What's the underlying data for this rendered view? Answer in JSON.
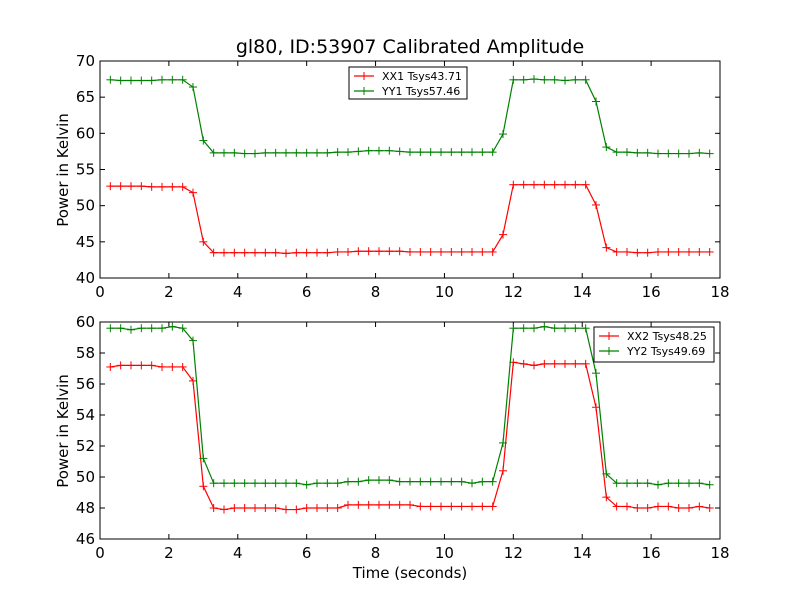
{
  "chart_data": [
    {
      "type": "line",
      "title": "gl80, ID:53907 Calibrated Amplitude",
      "xlabel": "",
      "ylabel": "Power in Kelvin",
      "xlim": [
        0,
        18
      ],
      "ylim": [
        40,
        70
      ],
      "xticks": [
        "0",
        "2",
        "4",
        "6",
        "8",
        "10",
        "12",
        "14",
        "16",
        "18"
      ],
      "yticks": [
        "40",
        "45",
        "50",
        "55",
        "60",
        "65",
        "70"
      ],
      "legend_position": "top-center",
      "x": [
        0.3,
        0.6,
        0.9,
        1.2,
        1.5,
        1.8,
        2.1,
        2.4,
        2.7,
        3.0,
        3.3,
        3.6,
        3.9,
        4.2,
        4.5,
        4.8,
        5.1,
        5.4,
        5.7,
        6.0,
        6.3,
        6.6,
        6.9,
        7.2,
        7.5,
        7.8,
        8.1,
        8.4,
        8.7,
        9.0,
        9.3,
        9.6,
        9.9,
        10.2,
        10.5,
        10.8,
        11.1,
        11.4,
        11.7,
        12.0,
        12.3,
        12.6,
        12.9,
        13.2,
        13.5,
        13.8,
        14.1,
        14.4,
        14.7,
        15.0,
        15.3,
        15.6,
        15.9,
        16.2,
        16.5,
        16.8,
        17.1,
        17.4,
        17.7
      ],
      "series": [
        {
          "name": "XX1 Tsys43.71",
          "color": "#ff0000",
          "values": [
            52.7,
            52.7,
            52.7,
            52.7,
            52.6,
            52.6,
            52.6,
            52.6,
            51.8,
            45.0,
            43.5,
            43.5,
            43.5,
            43.5,
            43.5,
            43.5,
            43.5,
            43.4,
            43.5,
            43.5,
            43.5,
            43.5,
            43.6,
            43.6,
            43.7,
            43.7,
            43.7,
            43.7,
            43.7,
            43.6,
            43.6,
            43.6,
            43.6,
            43.6,
            43.6,
            43.6,
            43.6,
            43.6,
            46.0,
            52.9,
            52.9,
            52.9,
            52.9,
            52.9,
            52.9,
            52.9,
            52.9,
            50.1,
            44.2,
            43.6,
            43.6,
            43.5,
            43.5,
            43.6,
            43.6,
            43.6,
            43.6,
            43.6,
            43.6
          ]
        },
        {
          "name": "YY1 Tsys57.46",
          "color": "#008000",
          "values": [
            67.4,
            67.3,
            67.3,
            67.3,
            67.3,
            67.4,
            67.4,
            67.4,
            66.4,
            59.0,
            57.3,
            57.3,
            57.3,
            57.2,
            57.2,
            57.3,
            57.3,
            57.3,
            57.3,
            57.3,
            57.3,
            57.3,
            57.4,
            57.4,
            57.5,
            57.6,
            57.6,
            57.6,
            57.5,
            57.4,
            57.4,
            57.4,
            57.4,
            57.4,
            57.4,
            57.4,
            57.4,
            57.4,
            59.9,
            67.4,
            67.4,
            67.5,
            67.4,
            67.4,
            67.3,
            67.4,
            67.4,
            64.4,
            58.1,
            57.4,
            57.4,
            57.3,
            57.3,
            57.2,
            57.2,
            57.2,
            57.2,
            57.3,
            57.2
          ]
        }
      ]
    },
    {
      "type": "line",
      "title": "",
      "xlabel": "Time (seconds)",
      "ylabel": "Power in Kelvin",
      "xlim": [
        0,
        18
      ],
      "ylim": [
        46,
        60
      ],
      "xticks": [
        "0",
        "2",
        "4",
        "6",
        "8",
        "10",
        "12",
        "14",
        "16",
        "18"
      ],
      "yticks": [
        "46",
        "48",
        "50",
        "52",
        "54",
        "56",
        "58",
        "60"
      ],
      "legend_position": "top-right",
      "x": [
        0.3,
        0.6,
        0.9,
        1.2,
        1.5,
        1.8,
        2.1,
        2.4,
        2.7,
        3.0,
        3.3,
        3.6,
        3.9,
        4.2,
        4.5,
        4.8,
        5.1,
        5.4,
        5.7,
        6.0,
        6.3,
        6.6,
        6.9,
        7.2,
        7.5,
        7.8,
        8.1,
        8.4,
        8.7,
        9.0,
        9.3,
        9.6,
        9.9,
        10.2,
        10.5,
        10.8,
        11.1,
        11.4,
        11.7,
        12.0,
        12.3,
        12.6,
        12.9,
        13.2,
        13.5,
        13.8,
        14.1,
        14.4,
        14.7,
        15.0,
        15.3,
        15.6,
        15.9,
        16.2,
        16.5,
        16.8,
        17.1,
        17.4,
        17.7
      ],
      "series": [
        {
          "name": "XX2 Tsys48.25",
          "color": "#ff0000",
          "values": [
            57.1,
            57.2,
            57.2,
            57.2,
            57.2,
            57.1,
            57.1,
            57.1,
            56.2,
            49.4,
            48.0,
            47.9,
            48.0,
            48.0,
            48.0,
            48.0,
            48.0,
            47.9,
            47.9,
            48.0,
            48.0,
            48.0,
            48.0,
            48.2,
            48.2,
            48.2,
            48.2,
            48.2,
            48.2,
            48.2,
            48.1,
            48.1,
            48.1,
            48.1,
            48.1,
            48.1,
            48.1,
            48.1,
            50.4,
            57.4,
            57.3,
            57.2,
            57.3,
            57.3,
            57.3,
            57.3,
            57.3,
            54.5,
            48.7,
            48.1,
            48.1,
            48.0,
            48.0,
            48.1,
            48.1,
            48.0,
            48.0,
            48.1,
            48.0
          ]
        },
        {
          "name": "YY2 Tsys49.69",
          "color": "#008000",
          "values": [
            59.6,
            59.6,
            59.5,
            59.6,
            59.6,
            59.6,
            59.7,
            59.6,
            58.8,
            51.2,
            49.6,
            49.6,
            49.6,
            49.6,
            49.6,
            49.6,
            49.6,
            49.6,
            49.6,
            49.5,
            49.6,
            49.6,
            49.6,
            49.7,
            49.7,
            49.8,
            49.8,
            49.8,
            49.7,
            49.7,
            49.7,
            49.7,
            49.7,
            49.7,
            49.7,
            49.6,
            49.7,
            49.7,
            52.2,
            59.6,
            59.6,
            59.6,
            59.7,
            59.6,
            59.6,
            59.6,
            59.6,
            56.7,
            50.2,
            49.6,
            49.6,
            49.6,
            49.6,
            49.5,
            49.6,
            49.6,
            49.6,
            49.6,
            49.5
          ]
        }
      ]
    }
  ]
}
